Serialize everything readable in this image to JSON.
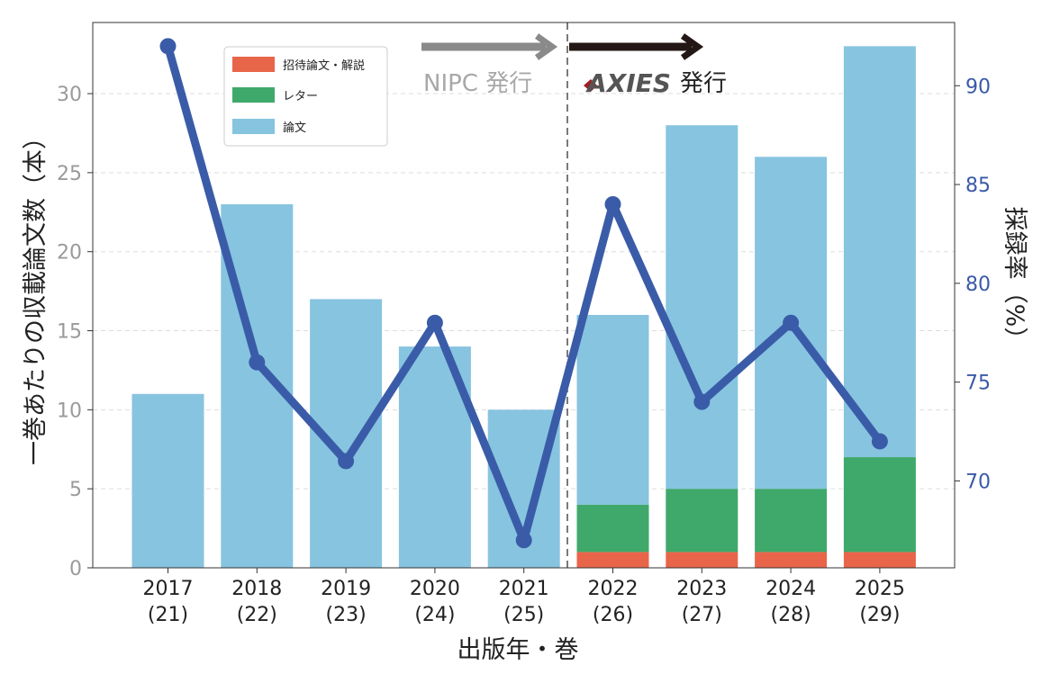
{
  "chart_data": {
    "type": "bar",
    "stacked": true,
    "categories": [
      "2017",
      "2018",
      "2019",
      "2020",
      "2021",
      "2022",
      "2023",
      "2024",
      "2025"
    ],
    "volumes": [
      "(21)",
      "(22)",
      "(23)",
      "(24)",
      "(25)",
      "(26)",
      "(27)",
      "(28)",
      "(29)"
    ],
    "series": [
      {
        "name": "招待論文・解説",
        "color": "#e8654a",
        "values": [
          0,
          0,
          0,
          0,
          0,
          1,
          1,
          1,
          1
        ]
      },
      {
        "name": "レター",
        "color": "#3fa96b",
        "values": [
          0,
          0,
          0,
          0,
          0,
          3,
          4,
          4,
          6
        ]
      },
      {
        "name": "論文",
        "color": "#87c4e0",
        "values": [
          11,
          23,
          17,
          14,
          10,
          12,
          23,
          21,
          26
        ]
      }
    ],
    "line_series": {
      "name": "採録率",
      "axis": "right",
      "color": "#3a5ca8",
      "values": [
        92,
        76,
        71,
        78,
        67,
        84,
        74,
        78,
        72
      ]
    },
    "xlabel": "出版年・巻",
    "ylabel": "一巻あたりの収載論文数（本）",
    "y2label": "採録率（%）",
    "ylim": [
      0,
      34.5
    ],
    "y2lim": [
      65.6,
      93.2
    ],
    "yticks": [
      0,
      5,
      10,
      15,
      20,
      25,
      30
    ],
    "y2ticks": [
      70,
      75,
      80,
      85,
      90
    ],
    "legend_position": "top-left",
    "grid": "horizontal-dashed",
    "annotations": {
      "nipc": "NIPC 発行",
      "axies": "AXIES",
      "axies_suffix": "発行",
      "divider_between": [
        "2021",
        "2022"
      ]
    }
  },
  "colors": {
    "arrow_gray": "#8a8a8a",
    "arrow_dark": "#231815",
    "axies_mark": "#a01e23"
  }
}
